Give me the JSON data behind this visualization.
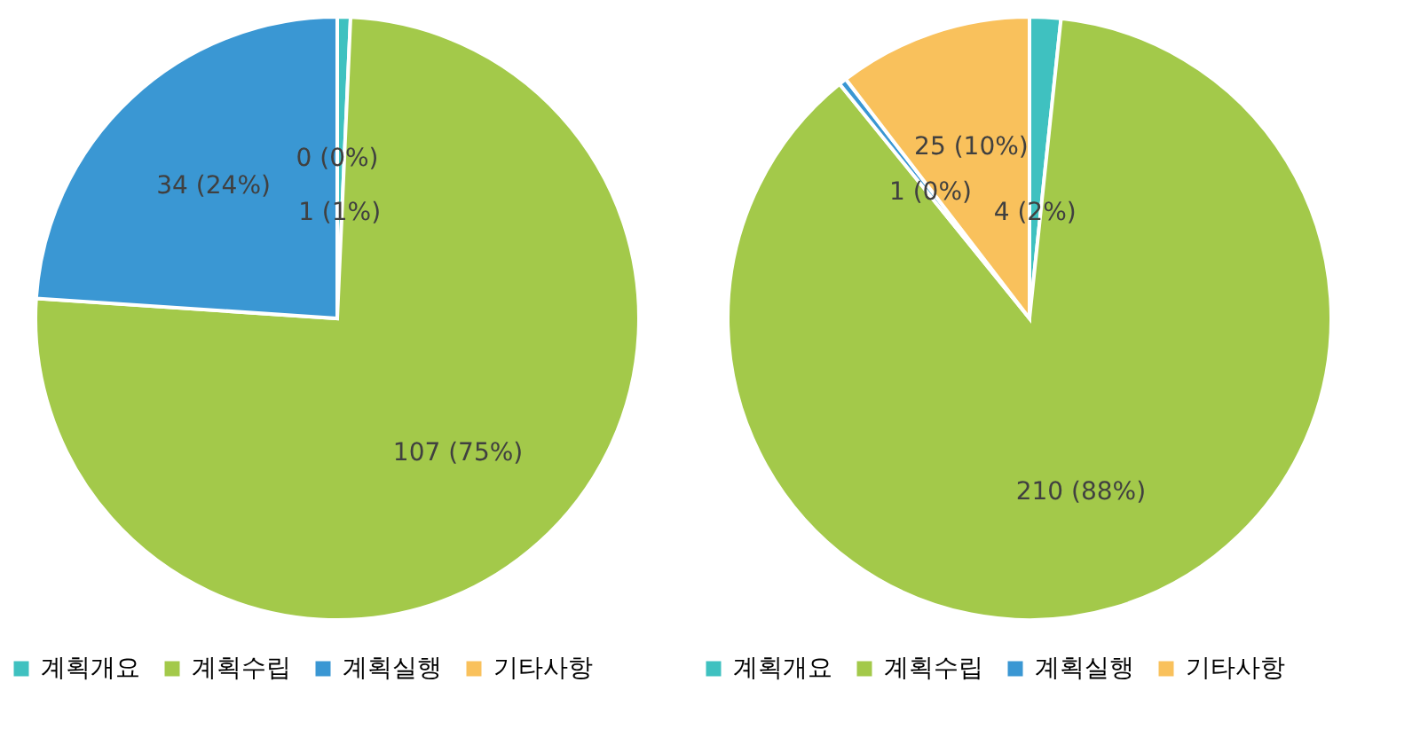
{
  "chart_data": [
    {
      "type": "pie",
      "categories": [
        "계획개요",
        "계획수립",
        "계획실행",
        "기타사항"
      ],
      "values": [
        1,
        107,
        34,
        0
      ],
      "colors": [
        "#3fc1c0",
        "#a3c94a",
        "#3a97d3",
        "#f9c15c"
      ],
      "value_labels": [
        "1 (1%)",
        "107 (75%)",
        "34 (24%)",
        "0 (0%)"
      ],
      "legend": "bottom"
    },
    {
      "type": "pie",
      "categories": [
        "계획개요",
        "계획수립",
        "계획실행",
        "기타사항"
      ],
      "values": [
        4,
        210,
        1,
        25
      ],
      "colors": [
        "#3fc1c0",
        "#a3c94a",
        "#3a97d3",
        "#f9c15c"
      ],
      "value_labels": [
        "4 (2%)",
        "210 (88%)",
        "1 (0%)",
        "25 (10%)"
      ],
      "legend": "bottom"
    }
  ]
}
